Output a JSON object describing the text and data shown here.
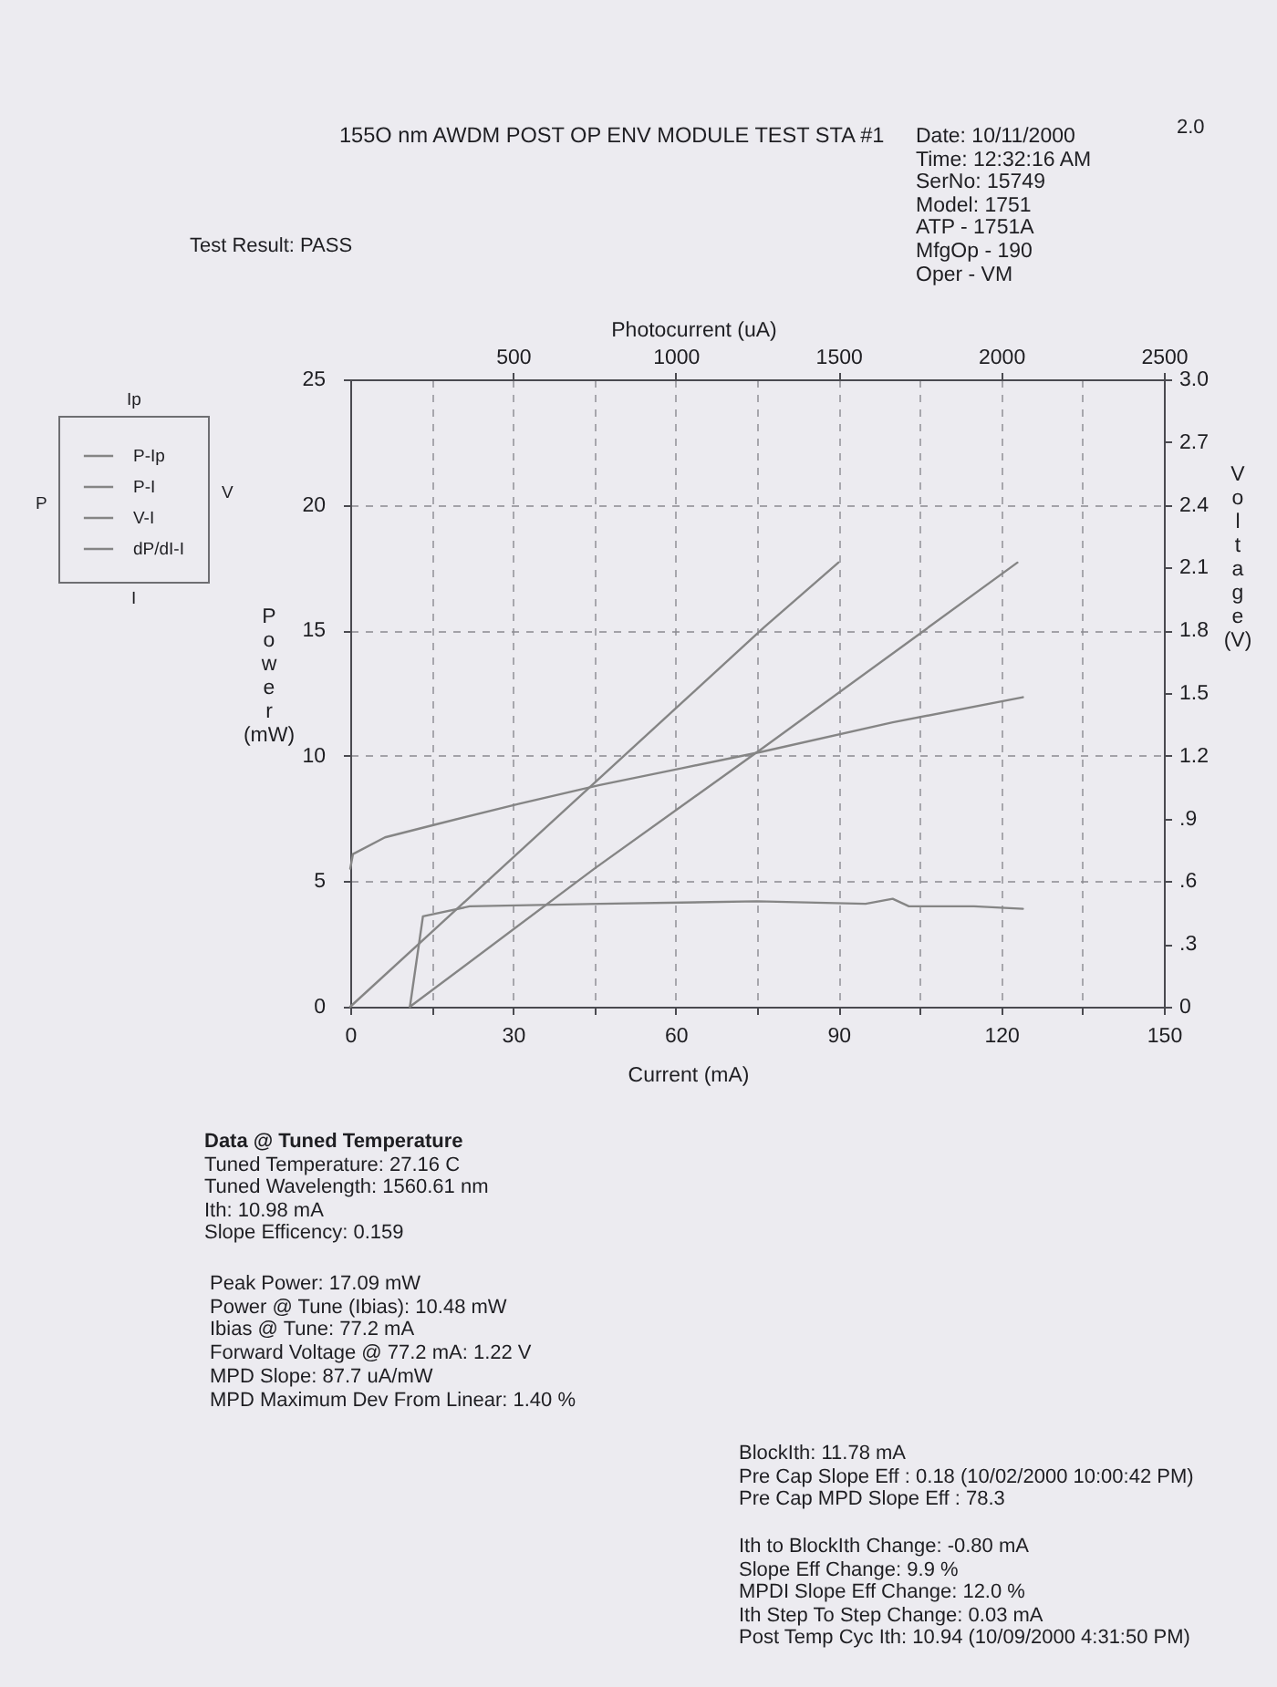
{
  "chart_data": {
    "type": "line",
    "title": "155O nm AWDM POST OP ENV MODULE TEST STA #1",
    "xlabel": "Current (mA)",
    "x2label": "Photocurrent (uA)",
    "ylabel": "Power (mW)",
    "y2label": "Voltage (V)",
    "annotations": [
      "Date: 10/11/2000",
      "Time: 12:32:16 AM",
      "SerNo: 15749",
      "Model: 1751",
      "ATP - 1751A",
      "MfgOp - 190",
      "Oper - VM",
      "2.0",
      "Test Result: PASS",
      "Ip",
      "P",
      "V",
      "I",
      "Data @ Tuned Temperature",
      "Tuned Temperature: 27.16 C",
      "Tuned Wavelength: 1560.61 nm",
      "Ith: 10.98 mA",
      "Slope Efficency: 0.159",
      "Peak Power: 17.09 mW",
      "Power @ Tune (Ibias): 10.48 mW",
      "Ibias @ Tune: 77.2 mA",
      "Forward Voltage @ 77.2 mA: 1.22 V",
      "MPD Slope: 87.7 uA/mW",
      "MPD Maximum Dev From Linear: 1.40 %",
      "BlockIth: 11.78 mA",
      "Pre Cap Slope Eff : 0.18 (10/02/2000 10:00:42 PM)",
      "Pre Cap MPD Slope Eff : 78.3",
      "Ith to BlockIth Change: -0.80 mA",
      "Slope Eff Change: 9.9 %",
      "MPDI Slope Eff Change: 12.0 %",
      "Ith Step To Step Change: 0.03 mA",
      "Post Temp Cyc Ith: 10.94 (10/09/2000 4:31:50 PM)"
    ],
    "xlim": [
      0,
      150
    ],
    "xticks": [
      0,
      {
        "value": 15,
        "label": null
      },
      30,
      {
        "value": 45,
        "label": null
      },
      60,
      {
        "value": 75,
        "label": null
      },
      90,
      {
        "value": 105,
        "label": null
      },
      120,
      {
        "value": 135,
        "label": null
      },
      150
    ],
    "x2lim": [
      0,
      2500
    ],
    "x2ticks": [
      500,
      1000,
      1500,
      2000,
      2500
    ],
    "ylim": [
      0,
      25
    ],
    "yticks": [
      0,
      5,
      10,
      15,
      20,
      25
    ],
    "y2lim": [
      0,
      3
    ],
    "y2ticks": [
      0,
      {
        "value": 0.3,
        "label": ".3"
      },
      {
        "value": 0.6,
        "label": ".6"
      },
      {
        "value": 0.9,
        "label": ".9"
      },
      1.2,
      1.5,
      1.8,
      2.1,
      2.4,
      2.7,
      {
        "value": 3,
        "label": "3.0"
      }
    ],
    "grid": true,
    "legend": "left",
    "series": [
      {
        "name": "P-Ip",
        "color": "#858585",
        "axis": "x2",
        "x": [
          0,
          1270,
          1500
        ],
        "values": [
          0,
          15.1,
          17.7
        ]
      },
      {
        "name": "P-I",
        "color": "#858585",
        "x": [
          11,
          45,
          76,
          123
        ],
        "values": [
          0,
          5.5,
          10.3,
          17.7
        ]
      },
      {
        "name": "V-I",
        "color": "#858585",
        "axis": "y2",
        "x": [
          0,
          0.5,
          6.4,
          15.5,
          31,
          46,
          61,
          76,
          100,
          124
        ],
        "values": [
          0.66,
          0.73,
          0.81,
          0.87,
          0.97,
          1.06,
          1.14,
          1.22,
          1.36,
          1.48
        ]
      },
      {
        "name": "dP/dI-I",
        "color": "#858585",
        "x": [
          11,
          13.4,
          22,
          46,
          75,
          95,
          100,
          103,
          115,
          124
        ],
        "values": [
          0,
          3.6,
          4.0,
          4.1,
          4.2,
          4.1,
          4.3,
          4.0,
          4.0,
          3.9
        ]
      }
    ]
  }
}
